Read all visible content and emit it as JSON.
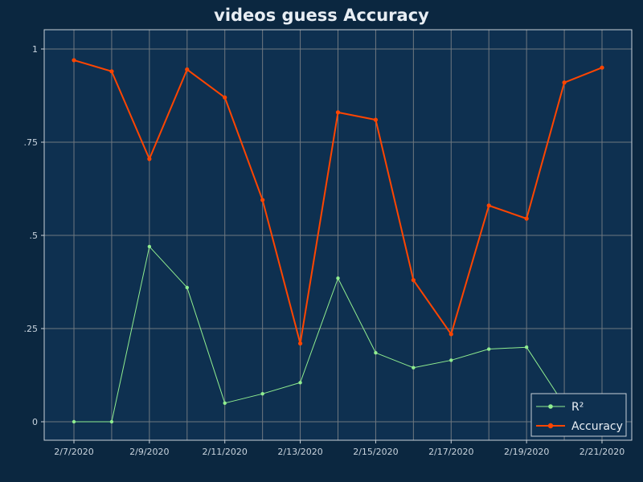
{
  "colors": {
    "background": "#0b2740",
    "plot_background": "#0e3050",
    "frame": "#c8d0d8",
    "grid": "#6f7880",
    "r2": "#90ee90",
    "accuracy": "#ff4500"
  },
  "chart_data": {
    "type": "line",
    "title": "videos guess Accuracy",
    "xlabel": "",
    "ylabel": "",
    "x": [
      "2020-02-07",
      "2020-02-08",
      "2020-02-09",
      "2020-02-10",
      "2020-02-11",
      "2020-02-12",
      "2020-02-13",
      "2020-02-14",
      "2020-02-15",
      "2020-02-16",
      "2020-02-17",
      "2020-02-18",
      "2020-02-19",
      "2020-02-20",
      "2020-02-21"
    ],
    "x_tick_labels": [
      "2/7/2020",
      "2/9/2020",
      "2/11/2020",
      "2/13/2020",
      "2/15/2020",
      "2/17/2020",
      "2/19/2020",
      "2/21/2020"
    ],
    "y_tick_labels": [
      "0",
      ".25",
      ".5",
      ".75",
      "1"
    ],
    "y_ticks": [
      0,
      0.25,
      0.5,
      0.75,
      1
    ],
    "ylim": [
      -0.05,
      1.05
    ],
    "grid": true,
    "legend_position": "bottom-right",
    "series": [
      {
        "name": "R²",
        "color": "#90ee90",
        "values": [
          0.0,
          0.0,
          0.47,
          0.36,
          0.05,
          0.075,
          0.105,
          0.385,
          0.185,
          0.145,
          0.165,
          0.195,
          0.2,
          0.045,
          0.02
        ]
      },
      {
        "name": "Accuracy",
        "color": "#ff4500",
        "values": [
          0.97,
          0.94,
          0.705,
          0.945,
          0.87,
          0.595,
          0.21,
          0.83,
          0.81,
          0.38,
          0.235,
          0.58,
          0.545,
          0.91,
          0.95
        ]
      }
    ]
  }
}
